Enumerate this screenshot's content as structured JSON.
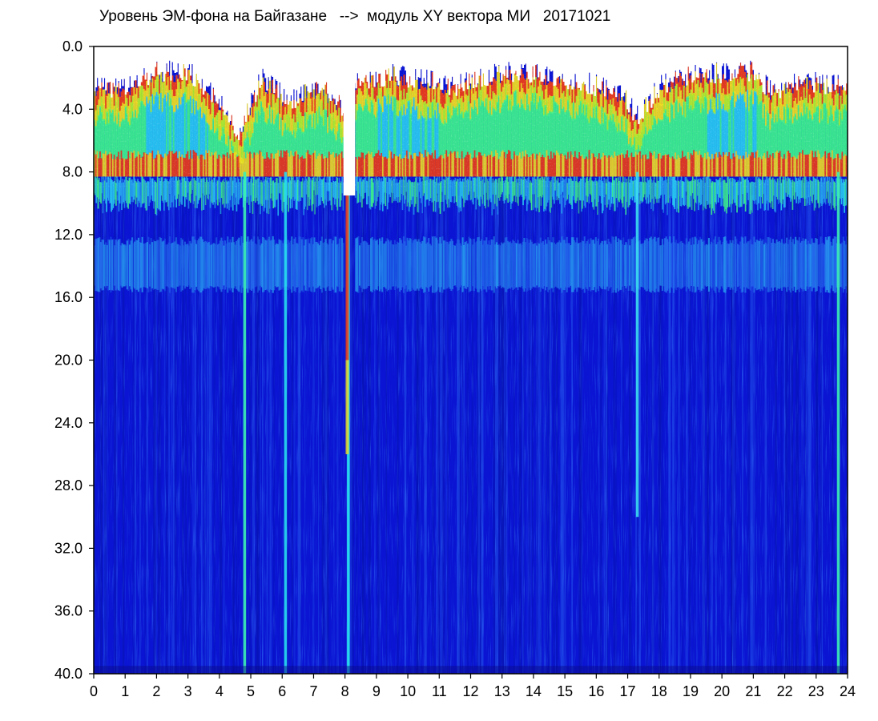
{
  "chart_data": {
    "type": "heatmap",
    "title": "Уровень ЭМ-фона на Байгазане   -->  модуль XY вектора МИ   20171021",
    "xlabel": "",
    "ylabel": "",
    "x_ticks": [
      "0",
      "1",
      "2",
      "3",
      "4",
      "5",
      "6",
      "7",
      "8",
      "9",
      "10",
      "11",
      "12",
      "13",
      "14",
      "15",
      "16",
      "17",
      "18",
      "19",
      "20",
      "21",
      "22",
      "23",
      "24"
    ],
    "y_ticks": [
      "0.0",
      "4.0",
      "8.0",
      "12.0",
      "16.0",
      "20.0",
      "24.0",
      "28.0",
      "32.0",
      "36.0",
      "40.0"
    ],
    "xlim": [
      0,
      24
    ],
    "ylim": [
      0,
      40
    ],
    "y_inverted": true,
    "grid": false,
    "colormap": [
      "#0a14d2",
      "#1e50f0",
      "#28c8f0",
      "#3cf08c",
      "#b4f028",
      "#f0dc1e",
      "#f03c14",
      "#ffffff"
    ],
    "background_color": "#0a14d2",
    "active_band_top_by_hour": [
      {
        "hour": 0,
        "top": 2.5
      },
      {
        "hour": 1,
        "top": 2.6
      },
      {
        "hour": 2,
        "top": 1.6
      },
      {
        "hour": 3,
        "top": 1.6
      },
      {
        "hour": 3.8,
        "top": 3.0
      },
      {
        "hour": 4.6,
        "top": 5.5
      },
      {
        "hour": 5.3,
        "top": 2.0
      },
      {
        "hour": 6.2,
        "top": 3.5
      },
      {
        "hour": 7.2,
        "top": 2.5
      },
      {
        "hour": 7.9,
        "top": 3.8
      },
      {
        "hour": 8.4,
        "top": 2.2
      },
      {
        "hour": 9.5,
        "top": 1.8
      },
      {
        "hour": 11.5,
        "top": 2.5
      },
      {
        "hour": 12,
        "top": 2.0
      },
      {
        "hour": 13.5,
        "top": 1.5
      },
      {
        "hour": 15.5,
        "top": 2.2
      },
      {
        "hour": 16.8,
        "top": 3.0
      },
      {
        "hour": 17.3,
        "top": 4.5
      },
      {
        "hour": 18,
        "top": 2.5
      },
      {
        "hour": 19,
        "top": 1.8
      },
      {
        "hour": 21,
        "top": 1.5
      },
      {
        "hour": 21.5,
        "top": 2.8
      },
      {
        "hour": 22.5,
        "top": 2.2
      },
      {
        "hour": 24,
        "top": 2.5
      }
    ],
    "band_features": [
      {
        "name": "upper_active_band",
        "from": 1.5,
        "to": 8.5,
        "levels": "cyan to red"
      },
      {
        "name": "transition_band",
        "from": 8.5,
        "to": 9.5,
        "levels": "green"
      },
      {
        "name": "mid_band",
        "from": 13.0,
        "to": 15.0,
        "levels": "light blue"
      },
      {
        "name": "background",
        "from": 9.5,
        "to": 40.0,
        "levels": "blue"
      }
    ],
    "vertical_features": [
      {
        "hour": 8.1,
        "from": 0.0,
        "to": 40.0,
        "color": "#28e6f0",
        "note": "gap at top, hot streak to ~20"
      },
      {
        "hour": 6.1,
        "from": 8.0,
        "to": 40.0,
        "color": "#28dcf0"
      },
      {
        "hour": 4.8,
        "from": 8.0,
        "to": 40.0,
        "color": "#3cf0b4"
      },
      {
        "hour": 17.3,
        "from": 8.0,
        "to": 30.0,
        "color": "#3cdcf0"
      },
      {
        "hour": 23.7,
        "from": 8.0,
        "to": 40.0,
        "color": "#3cf0b4"
      }
    ]
  }
}
